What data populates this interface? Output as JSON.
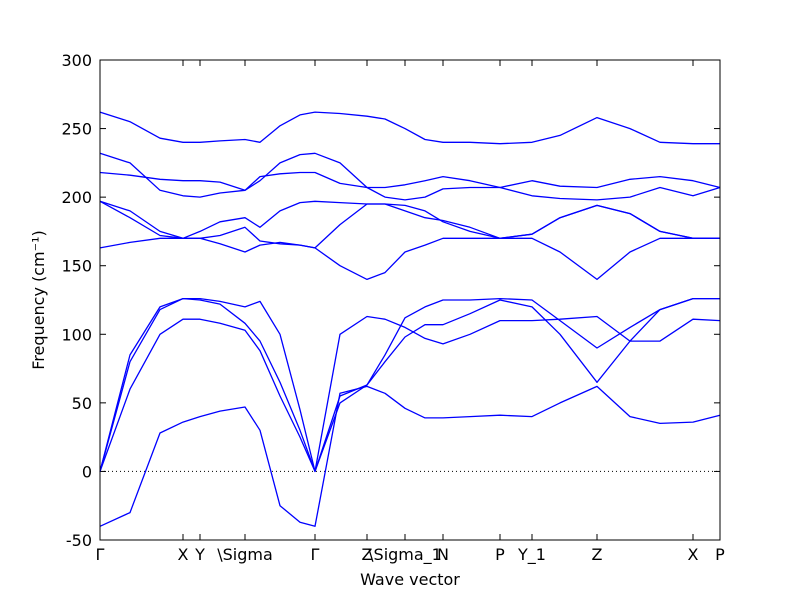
{
  "chart_data": {
    "type": "line",
    "xlabel": "Wave vector",
    "ylabel": "Frequency (cm⁻¹)",
    "color": "#0000ff",
    "zero_line": true,
    "xlim": [
      0,
      6.2
    ],
    "ylim": [
      -50,
      300
    ],
    "yticks": [
      -50,
      0,
      50,
      100,
      150,
      200,
      250,
      300
    ],
    "xticks": [
      {
        "value": 0,
        "label": "Γ"
      },
      {
        "value": 0.83,
        "label": "X"
      },
      {
        "value": 1.0,
        "label": "Y"
      },
      {
        "value": 1.45,
        "label": "\\Sigma"
      },
      {
        "value": 2.15,
        "label": "Γ"
      },
      {
        "value": 2.67,
        "label": "Z"
      },
      {
        "value": 3.05,
        "label": "\\Sigma_1"
      },
      {
        "value": 3.43,
        "label": "N"
      },
      {
        "value": 4.0,
        "label": "P"
      },
      {
        "value": 4.32,
        "label": "Y_1"
      },
      {
        "value": 4.97,
        "label": "Z"
      },
      {
        "value": 5.93,
        "label": "X"
      },
      {
        "value": 6.2,
        "label": "P"
      }
    ],
    "x": [
      0,
      0.3,
      0.6,
      0.83,
      1.0,
      1.2,
      1.45,
      1.6,
      1.8,
      2.0,
      2.15,
      2.4,
      2.67,
      2.85,
      3.05,
      3.25,
      3.43,
      3.7,
      4.0,
      4.32,
      4.6,
      4.97,
      5.3,
      5.6,
      5.93,
      6.2
    ],
    "series": [
      {
        "values": [
          -40,
          -30,
          28,
          36,
          40,
          44,
          47,
          30,
          -25,
          -37,
          -40,
          57,
          62,
          57,
          46,
          39,
          39,
          40,
          41,
          40,
          50,
          62,
          40,
          35,
          36,
          41
        ]
      },
      {
        "values": [
          0,
          60,
          100,
          111,
          111,
          108,
          103,
          88,
          55,
          25,
          0,
          50,
          63,
          80,
          98,
          107,
          107,
          115,
          125,
          120,
          100,
          65,
          95,
          118,
          126,
          126
        ]
      },
      {
        "values": [
          0,
          80,
          118,
          126,
          125,
          122,
          108,
          95,
          65,
          30,
          0,
          55,
          63,
          85,
          112,
          120,
          125,
          125,
          126,
          125,
          110,
          90,
          105,
          118,
          126,
          126
        ]
      },
      {
        "values": [
          0,
          85,
          120,
          126,
          126,
          124,
          120,
          124,
          100,
          45,
          0,
          100,
          113,
          111,
          105,
          97,
          93,
          100,
          110,
          110,
          111,
          113,
          95,
          95,
          111,
          110
        ]
      },
      {
        "values": [
          163,
          167,
          170,
          170,
          170,
          166,
          160,
          165,
          167,
          165,
          163,
          150,
          140,
          145,
          160,
          165,
          170,
          170,
          170,
          170,
          160,
          140,
          160,
          170,
          170,
          170
        ]
      },
      {
        "values": [
          197,
          185,
          172,
          170,
          170,
          172,
          178,
          168,
          166,
          165,
          163,
          180,
          195,
          195,
          194,
          190,
          182,
          175,
          170,
          173,
          185,
          194,
          188,
          175,
          170,
          170
        ]
      },
      {
        "values": [
          197,
          190,
          175,
          170,
          175,
          182,
          185,
          178,
          190,
          196,
          197,
          196,
          195,
          195,
          190,
          185,
          183,
          178,
          170,
          173,
          185,
          194,
          188,
          175,
          170,
          170
        ]
      },
      {
        "values": [
          218,
          216,
          213,
          212,
          212,
          211,
          205,
          215,
          217,
          218,
          218,
          210,
          207,
          207,
          209,
          212,
          215,
          212,
          207,
          212,
          208,
          207,
          213,
          215,
          212,
          207
        ]
      },
      {
        "values": [
          232,
          225,
          205,
          201,
          200,
          203,
          205,
          212,
          225,
          231,
          232,
          225,
          207,
          200,
          198,
          200,
          206,
          207,
          207,
          201,
          199,
          198,
          200,
          207,
          201,
          207
        ]
      },
      {
        "values": [
          262,
          255,
          243,
          240,
          240,
          241,
          242,
          240,
          252,
          260,
          262,
          261,
          259,
          257,
          250,
          242,
          240,
          240,
          239,
          240,
          245,
          258,
          250,
          240,
          239,
          239
        ]
      }
    ]
  }
}
